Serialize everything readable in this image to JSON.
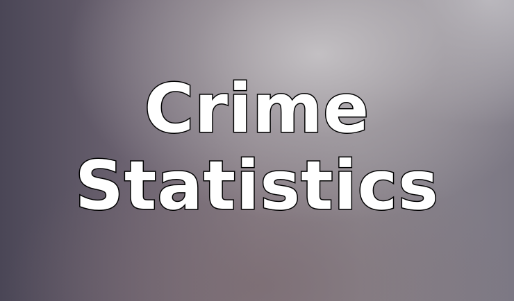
{
  "title": {
    "line1": "Crime",
    "line2": "Statistics"
  },
  "colors": {
    "text_fill": "#ffffff",
    "text_outline": "#000000",
    "background_left": "#4a4656",
    "background_center": "#8a8088",
    "background_highlight": "#c6c3c6"
  }
}
